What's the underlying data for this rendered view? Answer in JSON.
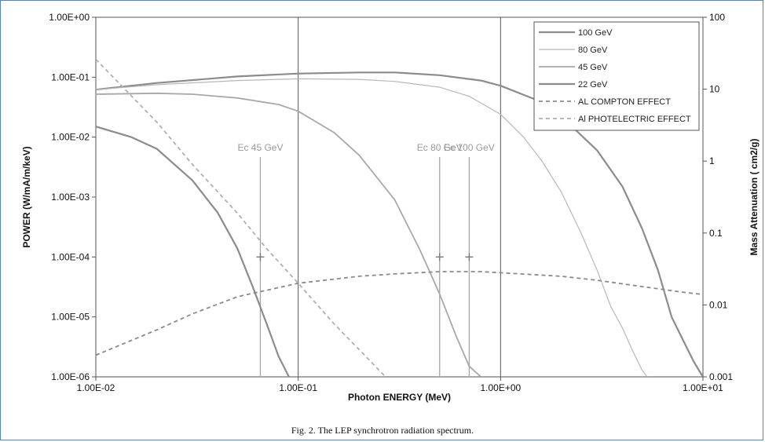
{
  "chart_data": {
    "type": "line",
    "caption": "Fig. 2. The LEP synchrotron radiation spectrum.",
    "xlabel": "Photon ENERGY (MeV)",
    "ylabel": "POWER  (W/mA/m/keV)",
    "y2label": "Mass  Attenuation  ( cm2/g)",
    "x_scale": "log",
    "y_scale": "log",
    "y2_scale": "log",
    "xlim": [
      0.01,
      10
    ],
    "ylim": [
      1e-06,
      1
    ],
    "y2lim": [
      0.001,
      100
    ],
    "x_ticks": [
      {
        "value": 0.01,
        "label": "1.00E-02"
      },
      {
        "value": 0.1,
        "label": "1.00E-01"
      },
      {
        "value": 1,
        "label": "1.00E+00"
      },
      {
        "value": 10,
        "label": "1.00E+01"
      }
    ],
    "y_ticks": [
      {
        "value": 1,
        "label": "1.00E+00"
      },
      {
        "value": 0.1,
        "label": "1.00E-01"
      },
      {
        "value": 0.01,
        "label": "1.00E-02"
      },
      {
        "value": 0.001,
        "label": "1.00E-03"
      },
      {
        "value": 0.0001,
        "label": "1.00E-04"
      },
      {
        "value": 1e-05,
        "label": "1.00E-05"
      },
      {
        "value": 1e-06,
        "label": "1.00E-06"
      }
    ],
    "y2_ticks": [
      {
        "value": 100,
        "label": "100"
      },
      {
        "value": 10,
        "label": "10"
      },
      {
        "value": 1,
        "label": "1"
      },
      {
        "value": 0.1,
        "label": "0.1"
      },
      {
        "value": 0.01,
        "label": "0.01"
      },
      {
        "value": 0.001,
        "label": "0.001"
      }
    ],
    "grid": "vertical-major",
    "legend_position": "top-right",
    "series": [
      {
        "name": "100 GeV",
        "axis": "left",
        "color": "#8c8c8c",
        "width": 2.2,
        "dash": "",
        "x": [
          0.01,
          0.02,
          0.05,
          0.1,
          0.2,
          0.3,
          0.5,
          0.8,
          1.0,
          1.5,
          2.0,
          3.0,
          4.0,
          5.0,
          6.0,
          7.0,
          8.0,
          9.0,
          10.0
        ],
        "y": [
          0.062,
          0.08,
          0.103,
          0.115,
          0.12,
          0.12,
          0.108,
          0.088,
          0.072,
          0.042,
          0.022,
          0.006,
          0.0015,
          0.0003,
          6e-05,
          1e-05,
          4e-06,
          1.8e-06,
          1e-06
        ]
      },
      {
        "name": "80 GeV",
        "axis": "left",
        "color": "#b8b8b8",
        "width": 1.2,
        "dash": "",
        "x": [
          0.01,
          0.02,
          0.05,
          0.1,
          0.2,
          0.3,
          0.5,
          0.7,
          1.0,
          1.3,
          1.6,
          2.0,
          2.5,
          3.0,
          3.5,
          4.0,
          4.5,
          5.0,
          5.3
        ],
        "y": [
          0.062,
          0.075,
          0.088,
          0.094,
          0.092,
          0.085,
          0.068,
          0.048,
          0.024,
          0.01,
          0.004,
          0.0012,
          0.00025,
          6e-05,
          1.5e-05,
          6.5e-06,
          2.7e-06,
          1.3e-06,
          1e-06
        ]
      },
      {
        "name": "45 GeV",
        "axis": "left",
        "color": "#a8a8a8",
        "width": 1.8,
        "dash": "",
        "x": [
          0.01,
          0.02,
          0.03,
          0.05,
          0.08,
          0.1,
          0.15,
          0.2,
          0.3,
          0.4,
          0.5,
          0.6,
          0.7,
          0.8
        ],
        "y": [
          0.052,
          0.054,
          0.052,
          0.045,
          0.035,
          0.027,
          0.012,
          0.005,
          0.0009,
          0.00013,
          2.4e-05,
          5e-06,
          1.5e-06,
          1e-06
        ]
      },
      {
        "name": "22 GeV",
        "axis": "left",
        "color": "#8c8c8c",
        "width": 2.2,
        "dash": "",
        "x": [
          0.01,
          0.015,
          0.02,
          0.03,
          0.04,
          0.05,
          0.06,
          0.07,
          0.08,
          0.09
        ],
        "y": [
          0.015,
          0.01,
          0.0064,
          0.0019,
          0.00055,
          0.00014,
          3e-05,
          7.5e-06,
          2.2e-06,
          1e-06
        ]
      },
      {
        "name": "AL COMPTON EFFECT",
        "axis": "right",
        "color": "#8a8a8a",
        "width": 1.8,
        "dash": "5,4",
        "x": [
          0.01,
          0.02,
          0.03,
          0.05,
          0.1,
          0.2,
          0.3,
          0.5,
          0.8,
          1.0,
          2.0,
          3.0,
          5.0,
          8.0,
          10.0
        ],
        "y2": [
          0.002,
          0.0045,
          0.0075,
          0.013,
          0.02,
          0.025,
          0.027,
          0.029,
          0.029,
          0.028,
          0.025,
          0.022,
          0.018,
          0.015,
          0.014
        ]
      },
      {
        "name": "Al PHOTELECTRIC EFFECT",
        "axis": "right",
        "color": "#b0b0b0",
        "width": 1.8,
        "dash": "5,4",
        "x": [
          0.01,
          0.02,
          0.03,
          0.05,
          0.07,
          0.1,
          0.15,
          0.2,
          0.27
        ],
        "y2": [
          26,
          3.5,
          0.9,
          0.19,
          0.06,
          0.02,
          0.0055,
          0.0024,
          0.001
        ]
      }
    ],
    "annotations": [
      {
        "label": "Ec 45 GeV",
        "x": 0.065
      },
      {
        "label": "Ec 80 GeV",
        "x": 0.5
      },
      {
        "label": "Ec 100 GeV",
        "x": 0.7
      }
    ],
    "markers": [
      {
        "x": 0.065,
        "y": 0.0001
      },
      {
        "x": 0.5,
        "y": 0.0001
      },
      {
        "x": 0.7,
        "y": 0.0001
      }
    ]
  }
}
